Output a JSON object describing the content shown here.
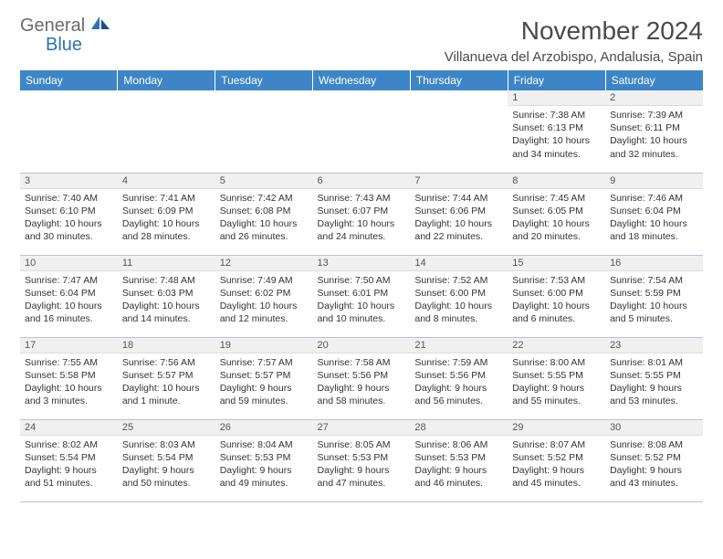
{
  "logo": {
    "text1": "General",
    "text2": "Blue"
  },
  "title": "November 2024",
  "location": "Villanueva del Arzobispo, Andalusia, Spain",
  "colors": {
    "header_bg": "#3d85c6",
    "header_fg": "#ffffff",
    "daynum_bg": "#f0f0f0",
    "border": "#b8c4d0",
    "logo_gray": "#6b6b6b",
    "logo_blue": "#2d72b8",
    "text": "#333333"
  },
  "weekdays": [
    "Sunday",
    "Monday",
    "Tuesday",
    "Wednesday",
    "Thursday",
    "Friday",
    "Saturday"
  ],
  "weeks": [
    [
      null,
      null,
      null,
      null,
      null,
      {
        "n": "1",
        "sr": "Sunrise: 7:38 AM",
        "ss": "Sunset: 6:13 PM",
        "dl1": "Daylight: 10 hours",
        "dl2": "and 34 minutes."
      },
      {
        "n": "2",
        "sr": "Sunrise: 7:39 AM",
        "ss": "Sunset: 6:11 PM",
        "dl1": "Daylight: 10 hours",
        "dl2": "and 32 minutes."
      }
    ],
    [
      {
        "n": "3",
        "sr": "Sunrise: 7:40 AM",
        "ss": "Sunset: 6:10 PM",
        "dl1": "Daylight: 10 hours",
        "dl2": "and 30 minutes."
      },
      {
        "n": "4",
        "sr": "Sunrise: 7:41 AM",
        "ss": "Sunset: 6:09 PM",
        "dl1": "Daylight: 10 hours",
        "dl2": "and 28 minutes."
      },
      {
        "n": "5",
        "sr": "Sunrise: 7:42 AM",
        "ss": "Sunset: 6:08 PM",
        "dl1": "Daylight: 10 hours",
        "dl2": "and 26 minutes."
      },
      {
        "n": "6",
        "sr": "Sunrise: 7:43 AM",
        "ss": "Sunset: 6:07 PM",
        "dl1": "Daylight: 10 hours",
        "dl2": "and 24 minutes."
      },
      {
        "n": "7",
        "sr": "Sunrise: 7:44 AM",
        "ss": "Sunset: 6:06 PM",
        "dl1": "Daylight: 10 hours",
        "dl2": "and 22 minutes."
      },
      {
        "n": "8",
        "sr": "Sunrise: 7:45 AM",
        "ss": "Sunset: 6:05 PM",
        "dl1": "Daylight: 10 hours",
        "dl2": "and 20 minutes."
      },
      {
        "n": "9",
        "sr": "Sunrise: 7:46 AM",
        "ss": "Sunset: 6:04 PM",
        "dl1": "Daylight: 10 hours",
        "dl2": "and 18 minutes."
      }
    ],
    [
      {
        "n": "10",
        "sr": "Sunrise: 7:47 AM",
        "ss": "Sunset: 6:04 PM",
        "dl1": "Daylight: 10 hours",
        "dl2": "and 16 minutes."
      },
      {
        "n": "11",
        "sr": "Sunrise: 7:48 AM",
        "ss": "Sunset: 6:03 PM",
        "dl1": "Daylight: 10 hours",
        "dl2": "and 14 minutes."
      },
      {
        "n": "12",
        "sr": "Sunrise: 7:49 AM",
        "ss": "Sunset: 6:02 PM",
        "dl1": "Daylight: 10 hours",
        "dl2": "and 12 minutes."
      },
      {
        "n": "13",
        "sr": "Sunrise: 7:50 AM",
        "ss": "Sunset: 6:01 PM",
        "dl1": "Daylight: 10 hours",
        "dl2": "and 10 minutes."
      },
      {
        "n": "14",
        "sr": "Sunrise: 7:52 AM",
        "ss": "Sunset: 6:00 PM",
        "dl1": "Daylight: 10 hours",
        "dl2": "and 8 minutes."
      },
      {
        "n": "15",
        "sr": "Sunrise: 7:53 AM",
        "ss": "Sunset: 6:00 PM",
        "dl1": "Daylight: 10 hours",
        "dl2": "and 6 minutes."
      },
      {
        "n": "16",
        "sr": "Sunrise: 7:54 AM",
        "ss": "Sunset: 5:59 PM",
        "dl1": "Daylight: 10 hours",
        "dl2": "and 5 minutes."
      }
    ],
    [
      {
        "n": "17",
        "sr": "Sunrise: 7:55 AM",
        "ss": "Sunset: 5:58 PM",
        "dl1": "Daylight: 10 hours",
        "dl2": "and 3 minutes."
      },
      {
        "n": "18",
        "sr": "Sunrise: 7:56 AM",
        "ss": "Sunset: 5:57 PM",
        "dl1": "Daylight: 10 hours",
        "dl2": "and 1 minute."
      },
      {
        "n": "19",
        "sr": "Sunrise: 7:57 AM",
        "ss": "Sunset: 5:57 PM",
        "dl1": "Daylight: 9 hours",
        "dl2": "and 59 minutes."
      },
      {
        "n": "20",
        "sr": "Sunrise: 7:58 AM",
        "ss": "Sunset: 5:56 PM",
        "dl1": "Daylight: 9 hours",
        "dl2": "and 58 minutes."
      },
      {
        "n": "21",
        "sr": "Sunrise: 7:59 AM",
        "ss": "Sunset: 5:56 PM",
        "dl1": "Daylight: 9 hours",
        "dl2": "and 56 minutes."
      },
      {
        "n": "22",
        "sr": "Sunrise: 8:00 AM",
        "ss": "Sunset: 5:55 PM",
        "dl1": "Daylight: 9 hours",
        "dl2": "and 55 minutes."
      },
      {
        "n": "23",
        "sr": "Sunrise: 8:01 AM",
        "ss": "Sunset: 5:55 PM",
        "dl1": "Daylight: 9 hours",
        "dl2": "and 53 minutes."
      }
    ],
    [
      {
        "n": "24",
        "sr": "Sunrise: 8:02 AM",
        "ss": "Sunset: 5:54 PM",
        "dl1": "Daylight: 9 hours",
        "dl2": "and 51 minutes."
      },
      {
        "n": "25",
        "sr": "Sunrise: 8:03 AM",
        "ss": "Sunset: 5:54 PM",
        "dl1": "Daylight: 9 hours",
        "dl2": "and 50 minutes."
      },
      {
        "n": "26",
        "sr": "Sunrise: 8:04 AM",
        "ss": "Sunset: 5:53 PM",
        "dl1": "Daylight: 9 hours",
        "dl2": "and 49 minutes."
      },
      {
        "n": "27",
        "sr": "Sunrise: 8:05 AM",
        "ss": "Sunset: 5:53 PM",
        "dl1": "Daylight: 9 hours",
        "dl2": "and 47 minutes."
      },
      {
        "n": "28",
        "sr": "Sunrise: 8:06 AM",
        "ss": "Sunset: 5:53 PM",
        "dl1": "Daylight: 9 hours",
        "dl2": "and 46 minutes."
      },
      {
        "n": "29",
        "sr": "Sunrise: 8:07 AM",
        "ss": "Sunset: 5:52 PM",
        "dl1": "Daylight: 9 hours",
        "dl2": "and 45 minutes."
      },
      {
        "n": "30",
        "sr": "Sunrise: 8:08 AM",
        "ss": "Sunset: 5:52 PM",
        "dl1": "Daylight: 9 hours",
        "dl2": "and 43 minutes."
      }
    ]
  ]
}
